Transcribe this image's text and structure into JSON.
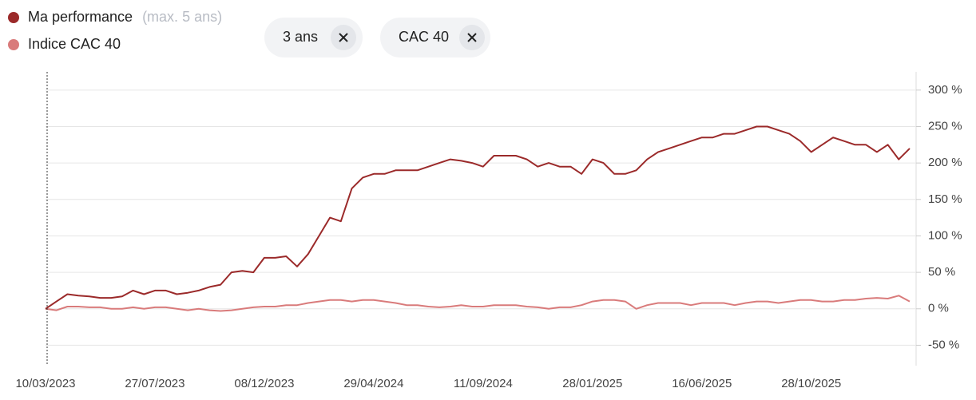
{
  "chart_data": {
    "type": "line",
    "legend_note": "(max. 5 ans)",
    "categories": [
      "10/03/2023",
      null,
      null,
      null,
      null,
      null,
      null,
      null,
      null,
      null,
      "27/07/2023",
      null,
      null,
      null,
      null,
      null,
      null,
      null,
      null,
      null,
      "08/12/2023",
      null,
      null,
      null,
      null,
      null,
      null,
      null,
      null,
      null,
      "29/04/2024",
      null,
      null,
      null,
      null,
      null,
      null,
      null,
      null,
      null,
      "11/09/2024",
      null,
      null,
      null,
      null,
      null,
      null,
      null,
      null,
      null,
      "28/01/2025",
      null,
      null,
      null,
      null,
      null,
      null,
      null,
      null,
      null,
      "16/06/2025",
      null,
      null,
      null,
      null,
      null,
      null,
      null,
      null,
      null,
      "28/10/2025",
      null,
      null,
      null,
      null,
      null,
      null,
      null,
      null,
      null
    ],
    "series": [
      {
        "name": "Ma performance",
        "color": "#9b2a2a",
        "values": [
          0,
          10,
          20,
          18,
          17,
          15,
          15,
          17,
          25,
          20,
          25,
          25,
          20,
          22,
          25,
          30,
          33,
          50,
          52,
          50,
          70,
          70,
          72,
          58,
          75,
          100,
          125,
          120,
          165,
          180,
          185,
          185,
          190,
          190,
          190,
          195,
          200,
          205,
          203,
          200,
          195,
          210,
          210,
          210,
          205,
          195,
          200,
          195,
          195,
          185,
          205,
          200,
          185,
          185,
          190,
          205,
          215,
          220,
          225,
          230,
          235,
          235,
          240,
          240,
          245,
          250,
          250,
          245,
          240,
          230,
          215,
          225,
          235,
          230,
          225,
          225,
          215,
          225,
          205,
          220
        ]
      },
      {
        "name": "Indice CAC 40",
        "color": "#d97b7b",
        "values": [
          0,
          -2,
          3,
          3,
          2,
          2,
          0,
          0,
          2,
          0,
          2,
          2,
          0,
          -2,
          0,
          -2,
          -3,
          -2,
          0,
          2,
          3,
          3,
          5,
          5,
          8,
          10,
          12,
          12,
          10,
          12,
          12,
          10,
          8,
          5,
          5,
          3,
          2,
          3,
          5,
          3,
          3,
          5,
          5,
          5,
          3,
          2,
          0,
          2,
          2,
          5,
          10,
          12,
          12,
          10,
          0,
          5,
          8,
          8,
          8,
          5,
          8,
          8,
          8,
          5,
          8,
          10,
          10,
          8,
          10,
          12,
          12,
          10,
          10,
          12,
          12,
          14,
          15,
          14,
          18,
          10
        ]
      }
    ],
    "ylim": [
      -78,
      325
    ],
    "yticks": [
      {
        "value": -50,
        "label": "-50 %"
      },
      {
        "value": 0,
        "label": "0 %"
      },
      {
        "value": 50,
        "label": "50 %"
      },
      {
        "value": 100,
        "label": "100 %"
      },
      {
        "value": 150,
        "label": "150 %"
      },
      {
        "value": 200,
        "label": "200 %"
      },
      {
        "value": 250,
        "label": "250 %"
      },
      {
        "value": 300,
        "label": "300 %"
      }
    ],
    "grid": true
  },
  "filters": [
    "3 ans",
    "CAC 40"
  ]
}
